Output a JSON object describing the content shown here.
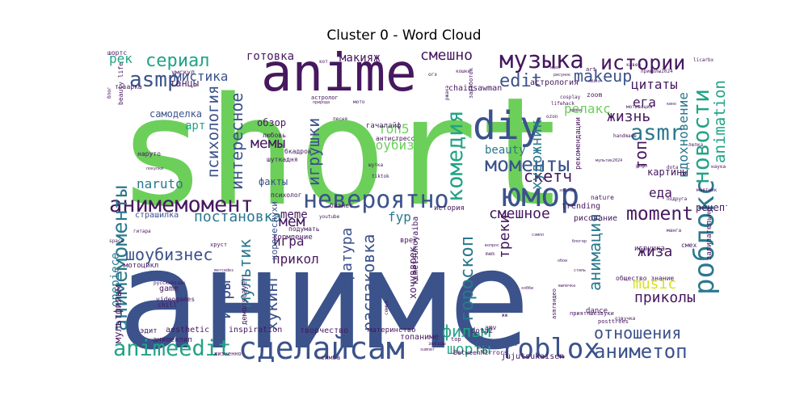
{
  "chart_data": {
    "type": "wordcloud",
    "title": "Cluster 0 - Word Cloud",
    "words": [
      {
        "text": "short",
        "color": "#6ccf5a"
      },
      {
        "text": "аниме",
        "color": "#3b528b"
      },
      {
        "text": "anime",
        "color": "#46185f"
      },
      {
        "text": "diy",
        "color": "#3b528b"
      },
      {
        "text": "юмор",
        "color": "#3b528b"
      },
      {
        "text": "роблокс",
        "color": "#2a788e"
      },
      {
        "text": "сделайсам",
        "color": "#3b528b"
      },
      {
        "text": "невероятно",
        "color": "#3b528b"
      },
      {
        "text": "анимемомент",
        "color": "#46185f"
      },
      {
        "text": "анимемоменты",
        "color": "#2a788e"
      },
      {
        "text": "новости",
        "color": "#21a386"
      },
      {
        "text": "комедия",
        "color": "#21a386"
      },
      {
        "text": "музыка",
        "color": "#46185f"
      },
      {
        "text": "roblox",
        "color": "#3b528b"
      },
      {
        "text": "animeedit",
        "color": "#21a386"
      },
      {
        "text": "аниметоп",
        "color": "#3b528b"
      },
      {
        "text": "истории",
        "color": "#46185f"
      },
      {
        "text": "моменты",
        "color": "#3b528b"
      },
      {
        "text": "asmr",
        "color": "#2a788e"
      },
      {
        "text": "asmp",
        "color": "#3b528b"
      },
      {
        "text": "сериал",
        "color": "#21a386"
      },
      {
        "text": "гороскоп",
        "color": "#2a788e"
      },
      {
        "text": "animation",
        "color": "#21a386"
      },
      {
        "text": "moment",
        "color": "#46185f"
      },
      {
        "text": "игрушки",
        "color": "#3b528b"
      },
      {
        "text": "психология",
        "color": "#3b528b"
      },
      {
        "text": "edit",
        "color": "#3b528b"
      },
      {
        "text": "makeup",
        "color": "#3b528b"
      },
      {
        "text": "игры",
        "color": "#3b528b"
      },
      {
        "text": "шоубизнес",
        "color": "#3b528b"
      },
      {
        "text": "распаковка",
        "color": "#3b528b"
      },
      {
        "text": "литература",
        "color": "#3b528b"
      },
      {
        "text": "хукинг",
        "color": "#3b528b"
      },
      {
        "text": "анимация",
        "color": "#2a788e"
      },
      {
        "text": "мультик",
        "color": "#2a788e"
      },
      {
        "text": "отношения",
        "color": "#3b528b"
      },
      {
        "text": "фильм",
        "color": "#21a386"
      },
      {
        "text": "шорты",
        "color": "#21a386"
      },
      {
        "text": "music",
        "color": "#d8e219"
      },
      {
        "text": "приколы",
        "color": "#46185f"
      },
      {
        "text": "скетч",
        "color": "#46185f"
      },
      {
        "text": "смешно",
        "color": "#46185f"
      },
      {
        "text": "смешное",
        "color": "#46185f"
      },
      {
        "text": "жизнь",
        "color": "#46185f"
      },
      {
        "text": "топ",
        "color": "#46185f"
      },
      {
        "text": "цитаты",
        "color": "#46185f"
      },
      {
        "text": "вдохновение",
        "color": "#2a788e"
      },
      {
        "text": "ега",
        "color": "#46185f"
      },
      {
        "text": "еда",
        "color": "#46185f"
      },
      {
        "text": "жиза",
        "color": "#46185f"
      },
      {
        "text": "треки",
        "color": "#46185f"
      },
      {
        "text": "художник",
        "color": "#2a788e"
      },
      {
        "text": "интересное",
        "color": "#3b528b"
      },
      {
        "text": "мистика",
        "color": "#3b528b"
      },
      {
        "text": "постановка",
        "color": "#2a788e"
      },
      {
        "text": "onepiece",
        "color": "#2a788e"
      },
      {
        "text": "мультфильм",
        "color": "#46185f"
      },
      {
        "text": "naruto",
        "color": "#2a788e"
      },
      {
        "text": "мемы",
        "color": "#46185f"
      },
      {
        "text": "мем",
        "color": "#46185f"
      },
      {
        "text": "игра",
        "color": "#46185f"
      },
      {
        "text": "прикол",
        "color": "#46185f"
      },
      {
        "text": "meme",
        "color": "#46185f"
      },
      {
        "text": "fyp",
        "color": "#2a788e"
      },
      {
        "text": "beauty",
        "color": "#2a788e"
      },
      {
        "text": "шоубиз",
        "color": "#6ccf5a"
      },
      {
        "text": "топ5",
        "color": "#6ccf5a"
      },
      {
        "text": "релакс",
        "color": "#6ccf5a"
      },
      {
        "text": "готовка",
        "color": "#46185f"
      },
      {
        "text": "макияж",
        "color": "#46185f"
      },
      {
        "text": "танцы",
        "color": "#46185f"
      },
      {
        "text": "арт",
        "color": "#21a386"
      },
      {
        "text": "рек",
        "color": "#21a386"
      },
      {
        "text": "рецепт",
        "color": "#46185f"
      },
      {
        "text": "картины",
        "color": "#46185f"
      },
      {
        "text": "самоделка",
        "color": "#3b528b"
      },
      {
        "text": "обзор",
        "color": "#46185f"
      },
      {
        "text": "факты",
        "color": "#3b528b"
      },
      {
        "text": "страшилка",
        "color": "#3b528b"
      },
      {
        "text": "кормление",
        "color": "#46185f"
      },
      {
        "text": "рисование",
        "color": "#46185f"
      },
      {
        "text": "история",
        "color": "#46185f"
      },
      {
        "text": "врек",
        "color": "#46185f"
      },
      {
        "text": "коpoчеслухи",
        "color": "#3b528b"
      },
      {
        "text": "хочувврек",
        "color": "#46185f"
      },
      {
        "text": "астрология",
        "color": "#46185f"
      },
      {
        "text": "рекомендации",
        "color": "#46185f"
      },
      {
        "text": "zoom",
        "color": "#46185f"
      },
      {
        "text": "игрушка",
        "color": "#46185f"
      },
      {
        "text": "смех",
        "color": "#46185f"
      },
      {
        "text": "залипательно",
        "color": "#46185f"
      },
      {
        "text": "общество знание",
        "color": "#46185f"
      },
      {
        "text": "dance",
        "color": "#46185f"
      },
      {
        "text": "топаниме",
        "color": "#46185f"
      },
      {
        "text": "материнство",
        "color": "#46185f"
      },
      {
        "text": "творчество",
        "color": "#46185f"
      },
      {
        "text": "inspiration",
        "color": "#46185f"
      },
      {
        "text": "aesthetic",
        "color": "#46185f"
      },
      {
        "text": "демonslayer",
        "color": "#46185f"
      },
      {
        "text": "аниmeклип",
        "color": "#46185f"
      },
      {
        "text": "эдит",
        "color": "#46185f"
      },
      {
        "text": "chainsawman",
        "color": "#46185f"
      },
      {
        "text": "jujutsukaisen",
        "color": "#46185f"
      },
      {
        "text": "dota2",
        "color": "#46185f"
      },
      {
        "text": "BetweenMirrors",
        "color": "#46185f"
      },
      {
        "text": "amv",
        "color": "#46185f"
      },
      {
        "text": "trending",
        "color": "#46185f"
      },
      {
        "text": "kimetsunoyaiba",
        "color": "#46185f"
      },
      {
        "text": "game",
        "color": "#46185f"
      },
      {
        "text": "videogames",
        "color": "#46185f"
      },
      {
        "text": "chill",
        "color": "#46185f"
      },
      {
        "text": "мотоцикл",
        "color": "#46185f"
      },
      {
        "text": "шортс",
        "color": "#46185f"
      },
      {
        "text": "умскул",
        "color": "#46185f"
      },
      {
        "text": "товарка",
        "color": "#46185f"
      },
      {
        "text": "beauty life",
        "color": "#46185f"
      },
      {
        "text": "наруто",
        "color": "#46185f"
      },
      {
        "text": "психолог",
        "color": "#46185f"
      },
      {
        "text": "шуткадня",
        "color": "#46185f"
      },
      {
        "text": "бизнес",
        "color": "#46185f"
      },
      {
        "text": "подумать",
        "color": "#46185f"
      },
      {
        "text": "симба",
        "color": "#46185f"
      },
      {
        "text": "жизненно",
        "color": "#46185f"
      },
      {
        "text": "nature",
        "color": "#46185f"
      },
      {
        "text": "space",
        "color": "#46185f"
      },
      {
        "text": "cosplay",
        "color": "#46185f"
      },
      {
        "text": "lifehack",
        "color": "#46185f"
      },
      {
        "text": "мотивация",
        "color": "#46185f"
      },
      {
        "text": "handmade",
        "color": "#46185f"
      },
      {
        "text": "рофл",
        "color": "#46185f"
      },
      {
        "text": "наука",
        "color": "#46185f"
      },
      {
        "text": "licarbx",
        "color": "#46185f"
      },
      {
        "text": "кавер",
        "color": "#46185f"
      },
      {
        "text": "приколы2024",
        "color": "#46185f"
      },
      {
        "text": "posttrees",
        "color": "#46185f"
      },
      {
        "text": "любовь",
        "color": "#46185f"
      },
      {
        "text": "гачалайф",
        "color": "#46185f"
      },
      {
        "text": "антистресс",
        "color": "#46185f"
      },
      {
        "text": "шутка",
        "color": "#46185f"
      },
      {
        "text": "бкадров",
        "color": "#46185f"
      },
      {
        "text": "хруст",
        "color": "#46185f"
      },
      {
        "text": "гитара",
        "color": "#46185f"
      },
      {
        "text": "русскийязык",
        "color": "#46185f"
      },
      {
        "text": "озвучка",
        "color": "#46185f"
      },
      {
        "text": "заработок",
        "color": "#46185f"
      },
      {
        "text": "астролог",
        "color": "#46185f"
      },
      {
        "text": "ржака",
        "color": "#46185f"
      },
      {
        "text": "маятник",
        "color": "#46185f"
      },
      {
        "text": "подруга",
        "color": "#46185f"
      },
      {
        "text": "манга",
        "color": "#46185f"
      },
      {
        "text": "звёзды",
        "color": "#46185f"
      },
      {
        "text": "семья",
        "color": "#46185f"
      },
      {
        "text": "блог",
        "color": "#46185f"
      },
      {
        "text": "жж",
        "color": "#46185f"
      },
      {
        "text": "art",
        "color": "#46185f"
      },
      {
        "text": "top",
        "color": "#46185f"
      },
      {
        "text": "mem",
        "color": "#46185f"
      },
      {
        "text": "dota",
        "color": "#46185f"
      },
      {
        "text": "кот",
        "color": "#46185f"
      },
      {
        "text": "ozon",
        "color": "#46185f"
      },
      {
        "text": "песня",
        "color": "#46185f"
      },
      {
        "text": "лепка",
        "color": "#46185f"
      },
      {
        "text": "огэ",
        "color": "#46185f"
      },
      {
        "text": "мото",
        "color": "#46185f"
      },
      {
        "text": "кошки",
        "color": "#46185f"
      },
      {
        "text": "идеи",
        "color": "#46185f"
      },
      {
        "text": "природа",
        "color": "#46185f"
      },
      {
        "text": "покупки",
        "color": "#46185f"
      },
      {
        "text": "рисунок",
        "color": "#46185f"
      },
      {
        "text": "youtube",
        "color": "#46185f"
      },
      {
        "text": "tiktok",
        "color": "#46185f"
      },
      {
        "text": "mercedes",
        "color": "#46185f"
      },
      {
        "text": "пранк",
        "color": "#46185f"
      },
      {
        "text": "зоопарк",
        "color": "#46185f"
      },
      {
        "text": "кино",
        "color": "#46185f"
      },
      {
        "text": "sumner",
        "color": "#46185f"
      },
      {
        "text": "asmrвидео",
        "color": "#46185f"
      },
      {
        "text": "приятныезвуки",
        "color": "#46185f"
      },
      {
        "text": "выпечка",
        "color": "#46185f"
      },
      {
        "text": "сэмпл",
        "color": "#46185f"
      },
      {
        "text": "мультик2024",
        "color": "#46185f"
      },
      {
        "text": "edits",
        "color": "#46185f"
      },
      {
        "text": "блогер",
        "color": "#46185f"
      },
      {
        "text": "хобби",
        "color": "#46185f"
      },
      {
        "text": "вопрос",
        "color": "#46185f"
      },
      {
        "text": "стиль",
        "color": "#46185f"
      },
      {
        "text": "фон",
        "color": "#46185f"
      },
      {
        "text": "обои",
        "color": "#46185f"
      }
    ]
  }
}
